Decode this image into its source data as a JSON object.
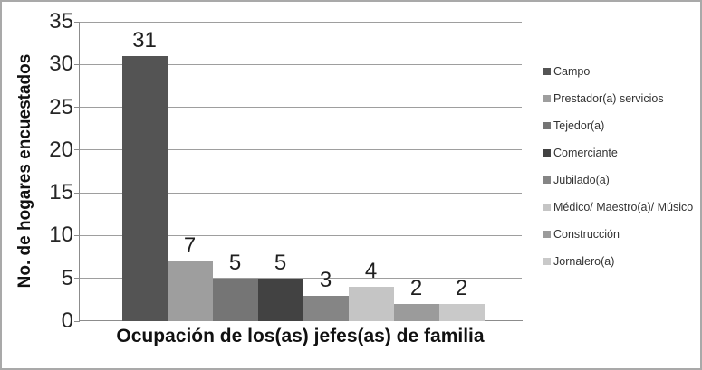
{
  "chart_data": {
    "type": "bar",
    "title": "",
    "categories": [
      "Campo",
      "Prestador(a) servicios",
      "Tejedor(a)",
      "Comerciante",
      "Jubilado(a)",
      "Médico/ Maestro(a)/ Músico",
      "Construcción",
      "Jornalero(a)"
    ],
    "values": [
      31,
      7,
      5,
      5,
      3,
      4,
      2,
      2
    ],
    "colors": [
      "#545454",
      "#9E9E9E",
      "#757575",
      "#424242",
      "#858585",
      "#C5C5C5",
      "#9B9B9B",
      "#C9C9C9"
    ],
    "xlabel": "Ocupación de los(as) jefes(as) de familia",
    "ylabel": "No. de hogares encuestados",
    "ylim": [
      0,
      35
    ],
    "yticks": [
      0,
      5,
      10,
      15,
      20,
      25,
      30,
      35
    ],
    "grid": true,
    "legend_position": "right",
    "styles": {
      "gridline_color": "#9E9E9E",
      "axis_color": "#8C8C8C",
      "frame_border_color": "#A9A9A9",
      "text_color": "#262626"
    }
  }
}
